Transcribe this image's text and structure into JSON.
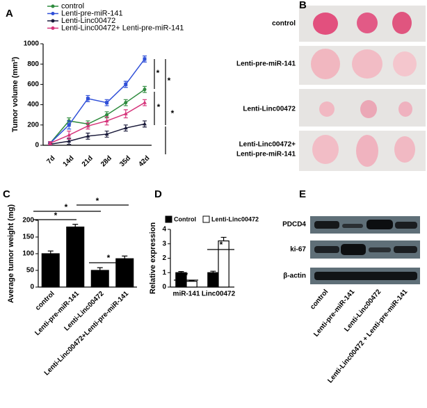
{
  "chart_data": [
    {
      "type": "line",
      "ylabel": "Tumor volume (mm³)",
      "categories": [
        "7d",
        "14d",
        "21d",
        "28d",
        "35d",
        "42d"
      ],
      "ylim": [
        0,
        1000
      ],
      "yticks": [
        0,
        200,
        400,
        600,
        800,
        1000
      ],
      "series": [
        {
          "name": "control",
          "color": "#2e8b3e",
          "values": [
            20,
            240,
            210,
            300,
            420,
            550
          ],
          "errors": [
            15,
            30,
            30,
            30,
            30,
            30
          ]
        },
        {
          "name": "Lenti-pre-miR-141",
          "color": "#2f4fd8",
          "values": [
            20,
            200,
            460,
            420,
            600,
            850
          ],
          "errors": [
            15,
            40,
            30,
            30,
            30,
            30
          ]
        },
        {
          "name": "Lenti-Linc00472",
          "color": "#1a1a3a",
          "values": [
            10,
            40,
            90,
            110,
            170,
            210
          ],
          "errors": [
            10,
            30,
            30,
            30,
            30,
            30
          ]
        },
        {
          "name": "Lenti-Linc00472+ Lenti-pre-miR-141",
          "color": "#d6337a",
          "values": [
            20,
            100,
            190,
            240,
            310,
            420
          ],
          "errors": [
            15,
            40,
            30,
            40,
            40,
            30
          ]
        }
      ],
      "annotations": [
        "*",
        "*",
        "*",
        "*"
      ]
    },
    {
      "type": "bar",
      "ylabel": "Average tumor weight (mg)",
      "categories": [
        "control",
        "Lenti-pre-miR-141",
        "Lenti-Linc00472",
        "Lenti-Linc00472+Lenti-pre-miR-141"
      ],
      "ylim": [
        0,
        200
      ],
      "yticks": [
        0,
        50,
        100,
        150,
        200
      ],
      "series": [
        {
          "name": null,
          "color": "#000000",
          "values": [
            100,
            180,
            50,
            85
          ],
          "errors": [
            8,
            8,
            8,
            8
          ]
        }
      ],
      "annotations": [
        "*",
        "*",
        "*",
        "*"
      ]
    },
    {
      "type": "bar",
      "ylabel": "Relative expression",
      "categories": [
        "miR-141",
        "Linc00472"
      ],
      "ylim": [
        0,
        4
      ],
      "yticks": [
        0,
        1,
        2,
        3,
        4
      ],
      "series": [
        {
          "name": "Control",
          "color": "#000000",
          "values": [
            1,
            1
          ],
          "errors": [
            0.08,
            0.1
          ]
        },
        {
          "name": "Lenti-Linc00472",
          "color": "#ffffff",
          "values": [
            0.4,
            3.2
          ],
          "errors": [
            0.03,
            0.25
          ]
        }
      ],
      "annotations": [
        "*",
        "*"
      ]
    }
  ],
  "panel_letters": [
    "A",
    "B",
    "C",
    "D",
    "E"
  ],
  "photo_rows": [
    [
      "control"
    ],
    [
      "Lenti-pre-miR-141"
    ],
    [
      "Lenti-Linc00472"
    ],
    [
      "Lenti-Linc00472+",
      "Lenti-pre-miR-141"
    ]
  ],
  "blot_rows": [
    "PDCD4",
    "ki-67",
    "β-actin"
  ],
  "blot_lanes": [
    "control",
    "Lenti-pre-miR-141",
    "Lenti-Linc00472",
    "Lenti-Linc00472 + Lenti-pre-miR-141"
  ]
}
